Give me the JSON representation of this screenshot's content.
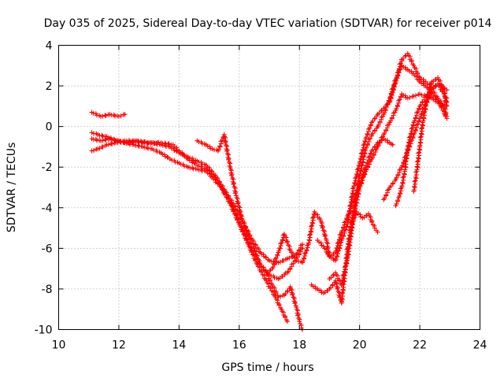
{
  "chart_data": {
    "type": "scatter",
    "title": "Day 035 of 2025, Sidereal Day-to-day VTEC variation (SDTVAR) for receiver p014",
    "xlabel": "GPS time / hours",
    "ylabel": "SDTVAR / TECUs",
    "xlim": [
      10,
      24
    ],
    "ylim": [
      -10,
      4
    ],
    "xticks": [
      "10",
      "12",
      "14",
      "16",
      "18",
      "20",
      "22",
      "24"
    ],
    "yticks": [
      "-10",
      "-8",
      "-6",
      "-4",
      "-2",
      "0",
      "2",
      "4"
    ],
    "grid": true,
    "marker": "plus",
    "color": "#ff0000",
    "series": [
      {
        "x": [
          11.1,
          11.4,
          11.7,
          12.0,
          12.3,
          12.6,
          13.0,
          13.4,
          13.8,
          14.0,
          14.3,
          14.6,
          14.9,
          15.2,
          15.5,
          15.8,
          16.1,
          16.4,
          16.7,
          17.0,
          17.3,
          17.6,
          17.9,
          18.1
        ],
        "y": [
          -0.6,
          -0.7,
          -0.6,
          -0.7,
          -0.8,
          -0.7,
          -0.8,
          -0.8,
          -0.9,
          -1.2,
          -1.6,
          -1.9,
          -2.1,
          -2.5,
          -3.2,
          -4.0,
          -5.0,
          -6.0,
          -6.8,
          -7.3,
          -7.5,
          -7.2,
          -6.5,
          -6.0
        ]
      },
      {
        "x": [
          11.1,
          11.3,
          11.6,
          11.9,
          12.2,
          12.5,
          12.8,
          13.1,
          13.4,
          13.7,
          14.0,
          14.3,
          14.6,
          14.9,
          15.1,
          15.4,
          15.7,
          16.0,
          16.3,
          16.6,
          16.9,
          17.2,
          17.4,
          17.6
        ],
        "y": [
          -0.3,
          -0.4,
          -0.5,
          -0.7,
          -0.8,
          -0.9,
          -1.0,
          -1.1,
          -1.3,
          -1.6,
          -1.8,
          -2.0,
          -2.1,
          -2.2,
          -2.5,
          -3.0,
          -3.8,
          -4.8,
          -5.8,
          -6.8,
          -7.6,
          -8.4,
          -9.0,
          -9.6
        ]
      },
      {
        "x": [
          11.1,
          11.3,
          11.6,
          11.9,
          12.2,
          12.5,
          12.8,
          13.1,
          13.4,
          13.7,
          14.0,
          14.3,
          14.6,
          14.9,
          15.2,
          15.5,
          15.8,
          16.1,
          16.4,
          16.7,
          17.0,
          17.3,
          17.6,
          17.9,
          18.1
        ],
        "y": [
          -1.2,
          -1.1,
          -0.9,
          -0.8,
          -0.7,
          -0.7,
          -0.8,
          -0.8,
          -0.9,
          -1.0,
          -1.3,
          -1.5,
          -1.7,
          -1.9,
          -2.4,
          -3.1,
          -3.8,
          -4.6,
          -5.5,
          -6.2,
          -6.6,
          -6.7,
          -6.5,
          -6.3,
          -5.8
        ]
      },
      {
        "x": [
          11.1,
          11.4,
          11.7,
          12.0,
          12.2
        ],
        "y": [
          0.7,
          0.5,
          0.6,
          0.5,
          0.6
        ]
      },
      {
        "x": [
          14.6,
          14.9,
          15.1,
          15.3,
          15.5,
          15.7,
          15.9,
          16.1,
          16.3,
          16.5,
          16.7,
          16.9,
          17.1,
          17.3,
          17.5,
          17.7,
          17.9,
          18.0,
          18.1
        ],
        "y": [
          -0.7,
          -0.9,
          -1.1,
          -1.2,
          -0.4,
          -2.0,
          -3.4,
          -4.6,
          -5.4,
          -6.0,
          -6.8,
          -7.2,
          -7.8,
          -8.4,
          -8.3,
          -7.9,
          -8.9,
          -9.6,
          -10.0
        ]
      },
      {
        "x": [
          16.9,
          17.1,
          17.3,
          17.5,
          17.7,
          17.9,
          18.1,
          18.3,
          18.5,
          18.7,
          18.9,
          19.0
        ],
        "y": [
          -7.2,
          -7.0,
          -6.2,
          -5.3,
          -6.1,
          -6.6,
          -6.7,
          -5.8,
          -4.2,
          -4.6,
          -5.6,
          -6.4
        ]
      },
      {
        "x": [
          18.4,
          18.6,
          18.8,
          19.0,
          19.2,
          19.4,
          19.6,
          19.8,
          20.0,
          20.2,
          20.4,
          20.6,
          20.8,
          21.0,
          21.2,
          21.4,
          21.6,
          21.8,
          22.0,
          22.2,
          22.4,
          22.6,
          22.9
        ],
        "y": [
          -7.8,
          -8.0,
          -8.2,
          -8.0,
          -7.6,
          -8.7,
          -6.0,
          -4.2,
          -2.4,
          -1.1,
          -0.4,
          0.0,
          0.6,
          1.4,
          2.3,
          3.0,
          2.8,
          2.6,
          2.2,
          2.0,
          1.6,
          1.3,
          0.4
        ]
      },
      {
        "x": [
          18.6,
          18.8,
          19.0,
          19.2,
          19.4,
          19.6,
          19.8,
          20.0,
          20.2,
          20.4,
          20.6,
          20.8,
          21.0,
          21.2,
          21.4,
          21.6,
          21.8,
          22.0,
          22.2,
          22.4,
          22.6,
          22.9
        ],
        "y": [
          -5.6,
          -5.9,
          -6.4,
          -6.6,
          -5.6,
          -4.8,
          -3.0,
          -1.8,
          -0.6,
          0.2,
          0.6,
          0.9,
          1.2,
          2.2,
          3.3,
          3.6,
          3.0,
          2.4,
          2.2,
          1.9,
          2.1,
          1.8
        ]
      },
      {
        "x": [
          19.0,
          19.2,
          19.4,
          19.6,
          19.8,
          20.0,
          20.2,
          20.4,
          20.6,
          20.8,
          21.0,
          21.2,
          21.4,
          21.6,
          21.8,
          22.0,
          22.2,
          22.4,
          22.6,
          22.8,
          22.9
        ],
        "y": [
          -6.4,
          -6.2,
          -5.2,
          -4.4,
          -3.6,
          -3.0,
          -2.2,
          -1.6,
          -1.0,
          -0.4,
          0.2,
          0.8,
          1.6,
          1.4,
          1.5,
          1.6,
          1.5,
          1.4,
          1.2,
          1.0,
          1.4
        ]
      },
      {
        "x": [
          19.0,
          19.2,
          19.4,
          19.6,
          19.8,
          20.0,
          20.2,
          20.4,
          20.6,
          20.8,
          21.0,
          21.1
        ],
        "y": [
          -7.5,
          -7.2,
          -7.8,
          -6.5,
          -4.4,
          -3.0,
          -2.0,
          -1.2,
          -0.8,
          -0.6,
          -0.8,
          -0.9
        ]
      },
      {
        "x": [
          19.7,
          19.9,
          20.1,
          20.3,
          20.5,
          20.6
        ],
        "y": [
          -5.0,
          -4.2,
          -4.5,
          -4.3,
          -5.0,
          -5.2
        ]
      },
      {
        "x": [
          20.8,
          21.0,
          21.2,
          21.4,
          21.6,
          21.8,
          22.0,
          22.2,
          22.4,
          22.6,
          22.8,
          22.9
        ],
        "y": [
          -3.6,
          -3.0,
          -2.6,
          -2.0,
          -1.2,
          -0.4,
          0.4,
          1.2,
          1.8,
          2.1,
          1.6,
          1.2
        ]
      },
      {
        "x": [
          21.2,
          21.3,
          21.4,
          21.5,
          21.6,
          21.8,
          22.0,
          22.2,
          22.4,
          22.6,
          22.8,
          22.9
        ],
        "y": [
          -3.9,
          -3.5,
          -3.0,
          -2.2,
          -1.0,
          0.2,
          1.0,
          1.5,
          1.8,
          1.4,
          1.0,
          0.5
        ]
      },
      {
        "x": [
          21.8,
          21.9,
          22.0,
          22.1,
          22.2,
          22.3,
          22.4,
          22.6,
          22.8,
          22.9
        ],
        "y": [
          -3.2,
          -2.2,
          -1.0,
          0.2,
          1.0,
          1.6,
          2.2,
          2.4,
          1.8,
          1.0
        ]
      }
    ]
  }
}
